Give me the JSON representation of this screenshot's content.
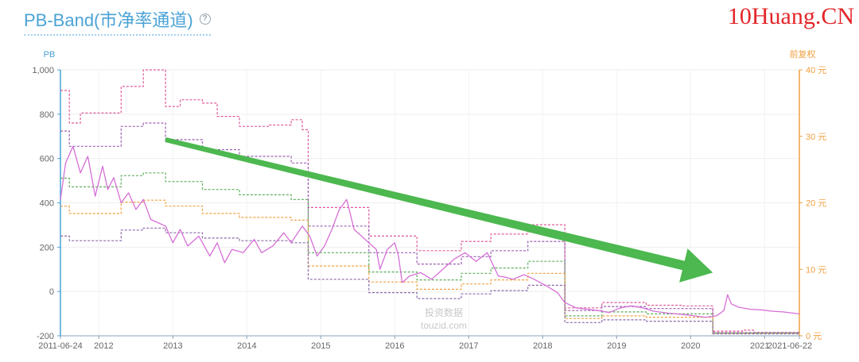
{
  "header": {
    "title": "PB-Band(市净率通道)",
    "help_icon": "question-circle-icon",
    "brand": "10Huang.CN"
  },
  "chart_data": {
    "type": "line",
    "title": "PB-Band(市净率通道)",
    "y_left_label": "PB",
    "y_right_label": "前复权",
    "y_left_ticks": [
      "1,000",
      "800",
      "600",
      "400",
      "200",
      "0",
      "-200"
    ],
    "y_left_range": [
      -200,
      1000
    ],
    "y_right_ticks": [
      "40 元",
      "30 元",
      "20 元",
      "10 元",
      "0 元"
    ],
    "y_right_range": [
      0,
      40
    ],
    "x_ticks": [
      "2011-06-24",
      "2012",
      "2013",
      "2014",
      "2015",
      "2016",
      "2017",
      "2018",
      "2019",
      "2020",
      "2021",
      "2021-06-22"
    ],
    "x_range": [
      2011.48,
      2021.47
    ],
    "watermark": [
      "投资数据",
      "touzid.com"
    ],
    "arrow": {
      "from": [
        2012.9,
        29.5
      ],
      "to": [
        2020.3,
        9.5
      ],
      "color": "#4cb84f"
    },
    "band_series": [
      {
        "color": "#e05a9a",
        "points": [
          [
            2011.48,
            36.9
          ],
          [
            2011.6,
            36.9
          ],
          [
            2011.6,
            32
          ],
          [
            2011.75,
            32
          ],
          [
            2011.75,
            33.5
          ],
          [
            2012.3,
            33.5
          ],
          [
            2012.3,
            37.5
          ],
          [
            2012.6,
            37.5
          ],
          [
            2012.6,
            40
          ],
          [
            2012.9,
            40
          ],
          [
            2012.9,
            34.5
          ],
          [
            2013.1,
            34.5
          ],
          [
            2013.1,
            35.5
          ],
          [
            2013.4,
            35.5
          ],
          [
            2013.4,
            35
          ],
          [
            2013.6,
            35
          ],
          [
            2013.6,
            33
          ],
          [
            2013.9,
            33
          ],
          [
            2013.9,
            31.5
          ],
          [
            2014.3,
            31.5
          ],
          [
            2014.3,
            31.7
          ],
          [
            2014.6,
            31.7
          ],
          [
            2014.6,
            32.5
          ],
          [
            2014.75,
            32.5
          ],
          [
            2014.75,
            31
          ],
          [
            2014.83,
            31
          ],
          [
            2014.83,
            19.3
          ],
          [
            2015.3,
            19.3
          ],
          [
            2015.3,
            19.3
          ],
          [
            2015.65,
            19.3
          ],
          [
            2015.65,
            15
          ],
          [
            2016.0,
            15
          ],
          [
            2016.0,
            15
          ],
          [
            2016.3,
            15
          ],
          [
            2016.3,
            12.8
          ],
          [
            2016.9,
            12.8
          ],
          [
            2016.9,
            14.2
          ],
          [
            2017.3,
            14.2
          ],
          [
            2017.3,
            15.3
          ],
          [
            2017.8,
            15.3
          ],
          [
            2017.8,
            16.7
          ],
          [
            2018.3,
            16.7
          ],
          [
            2018.3,
            4.2
          ],
          [
            2018.8,
            4.2
          ],
          [
            2018.8,
            5.0
          ],
          [
            2019.4,
            5.0
          ],
          [
            2019.4,
            4.6
          ],
          [
            2019.9,
            4.6
          ],
          [
            2019.9,
            4.5
          ],
          [
            2020.3,
            4.5
          ],
          [
            2020.3,
            0.7
          ],
          [
            2020.7,
            0.7
          ],
          [
            2020.7,
            0.85
          ],
          [
            2020.85,
            0.85
          ],
          [
            2020.85,
            0.5
          ],
          [
            2021.47,
            0.5
          ]
        ]
      },
      {
        "color": "#9a5fb2",
        "points": [
          [
            2011.48,
            30.8
          ],
          [
            2011.6,
            30.8
          ],
          [
            2011.6,
            28.5
          ],
          [
            2012.3,
            28.5
          ],
          [
            2012.3,
            31.5
          ],
          [
            2012.6,
            31.5
          ],
          [
            2012.6,
            32
          ],
          [
            2012.9,
            32
          ],
          [
            2012.9,
            29.5
          ],
          [
            2013.4,
            29.5
          ],
          [
            2013.4,
            28
          ],
          [
            2013.9,
            28
          ],
          [
            2013.9,
            27
          ],
          [
            2014.6,
            27
          ],
          [
            2014.6,
            26
          ],
          [
            2014.83,
            26
          ],
          [
            2014.83,
            16.5
          ],
          [
            2015.65,
            16.5
          ],
          [
            2015.65,
            12.5
          ],
          [
            2016.3,
            12.5
          ],
          [
            2016.3,
            10.8
          ],
          [
            2016.9,
            10.8
          ],
          [
            2016.9,
            11.9
          ],
          [
            2017.3,
            11.9
          ],
          [
            2017.3,
            12.8
          ],
          [
            2017.8,
            12.8
          ],
          [
            2017.8,
            14.2
          ],
          [
            2018.3,
            14.2
          ],
          [
            2018.3,
            3.8
          ],
          [
            2018.8,
            3.8
          ],
          [
            2018.8,
            4.4
          ],
          [
            2019.4,
            4.4
          ],
          [
            2019.4,
            4.1
          ],
          [
            2020.3,
            4.1
          ],
          [
            2020.3,
            0.5
          ],
          [
            2021.47,
            0.5
          ]
        ]
      },
      {
        "color": "#5fae5f",
        "points": [
          [
            2011.48,
            23.7
          ],
          [
            2011.6,
            23.7
          ],
          [
            2011.6,
            22.4
          ],
          [
            2012.3,
            22.4
          ],
          [
            2012.3,
            24.1
          ],
          [
            2012.6,
            24.1
          ],
          [
            2012.6,
            24.5
          ],
          [
            2012.9,
            24.5
          ],
          [
            2012.9,
            23.2
          ],
          [
            2013.4,
            23.2
          ],
          [
            2013.4,
            22
          ],
          [
            2013.9,
            22
          ],
          [
            2013.9,
            21.2
          ],
          [
            2014.6,
            21.2
          ],
          [
            2014.6,
            20.5
          ],
          [
            2014.83,
            20.5
          ],
          [
            2014.83,
            12.5
          ],
          [
            2015.65,
            12.5
          ],
          [
            2015.65,
            9.6
          ],
          [
            2016.3,
            9.6
          ],
          [
            2016.3,
            8.4
          ],
          [
            2016.9,
            8.4
          ],
          [
            2016.9,
            9.4
          ],
          [
            2017.3,
            9.4
          ],
          [
            2017.3,
            10.2
          ],
          [
            2017.8,
            10.2
          ],
          [
            2017.8,
            11.2
          ],
          [
            2018.3,
            11.2
          ],
          [
            2018.3,
            3.0
          ],
          [
            2018.8,
            3.0
          ],
          [
            2018.8,
            3.6
          ],
          [
            2019.4,
            3.6
          ],
          [
            2019.4,
            3.3
          ],
          [
            2020.3,
            3.3
          ],
          [
            2020.3,
            0.4
          ],
          [
            2021.47,
            0.4
          ]
        ]
      },
      {
        "color": "#f0a040",
        "points": [
          [
            2011.48,
            19.5
          ],
          [
            2011.6,
            19.5
          ],
          [
            2011.6,
            18.4
          ],
          [
            2012.3,
            18.4
          ],
          [
            2012.3,
            20.1
          ],
          [
            2012.6,
            20.1
          ],
          [
            2012.6,
            20.4
          ],
          [
            2012.9,
            20.4
          ],
          [
            2012.9,
            19.5
          ],
          [
            2013.4,
            19.5
          ],
          [
            2013.4,
            18.4
          ],
          [
            2013.9,
            18.4
          ],
          [
            2013.9,
            17.8
          ],
          [
            2014.6,
            17.8
          ],
          [
            2014.6,
            17.4
          ],
          [
            2014.83,
            17.4
          ],
          [
            2014.83,
            10.5
          ],
          [
            2015.65,
            10.5
          ],
          [
            2015.65,
            8.1
          ],
          [
            2016.3,
            8.1
          ],
          [
            2016.3,
            7.0
          ],
          [
            2016.9,
            7.0
          ],
          [
            2016.9,
            7.8
          ],
          [
            2017.3,
            7.8
          ],
          [
            2017.3,
            8.4
          ],
          [
            2017.8,
            8.4
          ],
          [
            2017.8,
            9.4
          ],
          [
            2018.3,
            9.4
          ],
          [
            2018.3,
            2.6
          ],
          [
            2018.8,
            2.6
          ],
          [
            2018.8,
            3.0
          ],
          [
            2019.4,
            3.0
          ],
          [
            2019.4,
            2.8
          ],
          [
            2020.3,
            2.8
          ],
          [
            2020.3,
            0.35
          ],
          [
            2021.47,
            0.35
          ]
        ]
      },
      {
        "color": "#8a6aa8",
        "points": [
          [
            2011.48,
            15
          ],
          [
            2011.6,
            15
          ],
          [
            2011.6,
            14.3
          ],
          [
            2012.3,
            14.3
          ],
          [
            2012.3,
            15.9
          ],
          [
            2012.6,
            15.9
          ],
          [
            2012.6,
            16.2
          ],
          [
            2012.9,
            16.2
          ],
          [
            2012.9,
            15.5
          ],
          [
            2013.4,
            15.5
          ],
          [
            2013.4,
            14.7
          ],
          [
            2013.9,
            14.7
          ],
          [
            2013.9,
            14.3
          ],
          [
            2014.6,
            14.3
          ],
          [
            2014.6,
            14
          ],
          [
            2014.83,
            14
          ],
          [
            2014.83,
            8.5
          ],
          [
            2015.65,
            8.5
          ],
          [
            2015.65,
            6.5
          ],
          [
            2016.3,
            6.5
          ],
          [
            2016.3,
            5.6
          ],
          [
            2016.9,
            5.6
          ],
          [
            2016.9,
            6.3
          ],
          [
            2017.3,
            6.3
          ],
          [
            2017.3,
            6.8
          ],
          [
            2017.8,
            6.8
          ],
          [
            2017.8,
            7.6
          ],
          [
            2018.3,
            7.6
          ],
          [
            2018.3,
            2.0
          ],
          [
            2018.8,
            2.0
          ],
          [
            2018.8,
            2.4
          ],
          [
            2019.4,
            2.4
          ],
          [
            2019.4,
            2.2
          ],
          [
            2020.3,
            2.2
          ],
          [
            2020.3,
            0.3
          ],
          [
            2021.47,
            0.3
          ]
        ]
      }
    ],
    "price_series": {
      "color": "#d66fd6",
      "points": [
        [
          2011.48,
          20.5
        ],
        [
          2011.55,
          26
        ],
        [
          2011.65,
          28.5
        ],
        [
          2011.75,
          24.5
        ],
        [
          2011.85,
          27
        ],
        [
          2011.95,
          21
        ],
        [
          2012.05,
          25.5
        ],
        [
          2012.12,
          22
        ],
        [
          2012.2,
          23.8
        ],
        [
          2012.3,
          20
        ],
        [
          2012.4,
          21.5
        ],
        [
          2012.5,
          19
        ],
        [
          2012.6,
          20.5
        ],
        [
          2012.7,
          17.5
        ],
        [
          2012.8,
          17
        ],
        [
          2012.9,
          16.5
        ],
        [
          2013.0,
          14
        ],
        [
          2013.1,
          16
        ],
        [
          2013.2,
          13.5
        ],
        [
          2013.35,
          15
        ],
        [
          2013.5,
          12
        ],
        [
          2013.6,
          14
        ],
        [
          2013.7,
          11
        ],
        [
          2013.8,
          13
        ],
        [
          2013.95,
          12.5
        ],
        [
          2014.1,
          14.5
        ],
        [
          2014.2,
          12.5
        ],
        [
          2014.35,
          13.5
        ],
        [
          2014.5,
          15.5
        ],
        [
          2014.6,
          14
        ],
        [
          2014.75,
          16.5
        ],
        [
          2014.85,
          15
        ],
        [
          2014.95,
          12
        ],
        [
          2015.05,
          13.5
        ],
        [
          2015.15,
          16
        ],
        [
          2015.25,
          19
        ],
        [
          2015.35,
          20.5
        ],
        [
          2015.45,
          16
        ],
        [
          2015.55,
          15
        ],
        [
          2015.65,
          14
        ],
        [
          2015.75,
          13
        ],
        [
          2015.8,
          10
        ],
        [
          2015.9,
          13
        ],
        [
          2016.0,
          14
        ],
        [
          2016.05,
          12
        ],
        [
          2016.1,
          8
        ],
        [
          2016.2,
          9
        ],
        [
          2016.35,
          9.5
        ],
        [
          2016.5,
          8.5
        ],
        [
          2016.6,
          9.5
        ],
        [
          2016.8,
          11.5
        ],
        [
          2016.95,
          12.5
        ],
        [
          2017.1,
          11.2
        ],
        [
          2017.25,
          12.5
        ],
        [
          2017.4,
          9
        ],
        [
          2017.5,
          8.8
        ],
        [
          2017.6,
          8.5
        ],
        [
          2017.75,
          9.2
        ],
        [
          2017.9,
          8.4
        ],
        [
          2018.05,
          7.5
        ],
        [
          2018.2,
          6.5
        ],
        [
          2018.3,
          5
        ],
        [
          2018.45,
          4.2
        ],
        [
          2018.6,
          4
        ],
        [
          2018.75,
          3.8
        ],
        [
          2018.9,
          3.5
        ],
        [
          2019.05,
          4.2
        ],
        [
          2019.2,
          4.5
        ],
        [
          2019.35,
          4.2
        ],
        [
          2019.5,
          3.7
        ],
        [
          2019.7,
          3.4
        ],
        [
          2019.9,
          3.2
        ],
        [
          2020.05,
          3.0
        ],
        [
          2020.2,
          2.8
        ],
        [
          2020.35,
          3.0
        ],
        [
          2020.45,
          3.8
        ],
        [
          2020.5,
          6.2
        ],
        [
          2020.55,
          4.8
        ],
        [
          2020.65,
          4.3
        ],
        [
          2020.8,
          4.0
        ],
        [
          2020.95,
          3.9
        ],
        [
          2021.1,
          3.7
        ],
        [
          2021.25,
          3.6
        ],
        [
          2021.47,
          3.3
        ]
      ]
    }
  }
}
